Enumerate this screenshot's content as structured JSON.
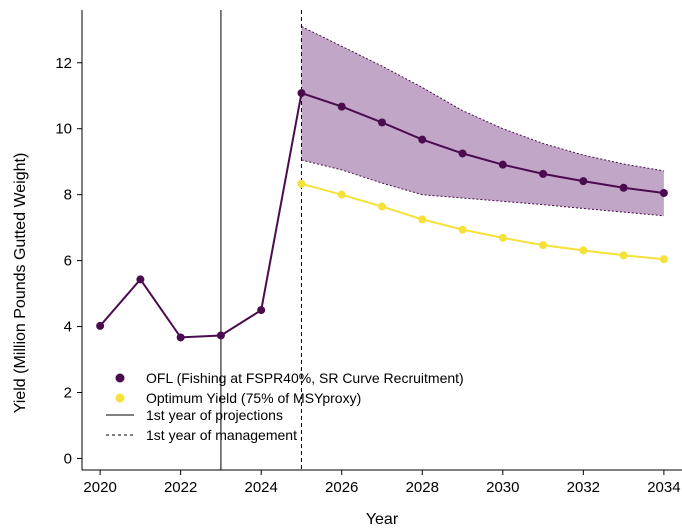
{
  "colors": {
    "ofl": "#4a0b4f",
    "optimum": "#f5e13a",
    "band_fill": "#c2a6c7",
    "band_edge": "#4a0b4f",
    "axis": "#000000"
  },
  "chart_data": {
    "type": "line",
    "xlabel": "Year",
    "ylabel": "Yield (Million Pounds Gutted Weight)",
    "xlim": [
      2019.55,
      2034.45
    ],
    "ylim": [
      -0.35,
      13.6
    ],
    "xticks": [
      2020,
      2022,
      2024,
      2026,
      2028,
      2030,
      2032,
      2034
    ],
    "yticks": [
      0,
      2,
      4,
      6,
      8,
      10,
      12
    ],
    "grid": false,
    "legend_position": "bottom-left",
    "series": [
      {
        "name": "OFL (Fishing at FSPR40%, SR Curve Recruitment)",
        "kind": "line-points",
        "color": "#4a0b4f",
        "x": [
          2020,
          2021,
          2022,
          2023,
          2024,
          2025,
          2026,
          2027,
          2028,
          2029,
          2030,
          2031,
          2032,
          2033,
          2034
        ],
        "y": [
          4.02,
          5.43,
          3.67,
          3.73,
          4.5,
          11.08,
          10.67,
          10.19,
          9.67,
          9.25,
          8.91,
          8.63,
          8.41,
          8.21,
          8.05
        ]
      },
      {
        "name": "Optimum Yield (75% of MSYproxy)",
        "kind": "line-points",
        "color": "#f5e13a",
        "x": [
          2025,
          2026,
          2027,
          2028,
          2029,
          2030,
          2031,
          2032,
          2033,
          2034
        ],
        "y": [
          8.33,
          8.0,
          7.64,
          7.25,
          6.94,
          6.69,
          6.47,
          6.31,
          6.16,
          6.04
        ]
      }
    ],
    "band": {
      "x": [
        2025,
        2026,
        2027,
        2028,
        2029,
        2030,
        2031,
        2032,
        2033,
        2034
      ],
      "upper": [
        13.1,
        12.5,
        11.9,
        11.25,
        10.55,
        10.0,
        9.55,
        9.2,
        8.93,
        8.72
      ],
      "lower": [
        9.05,
        8.75,
        8.35,
        8.0,
        7.9,
        7.8,
        7.7,
        7.58,
        7.47,
        7.36
      ]
    },
    "vlines": [
      {
        "x": 2023,
        "style": "solid",
        "name": "1st year of projections"
      },
      {
        "x": 2025,
        "style": "dashed",
        "name": "1st year of management"
      }
    ]
  }
}
